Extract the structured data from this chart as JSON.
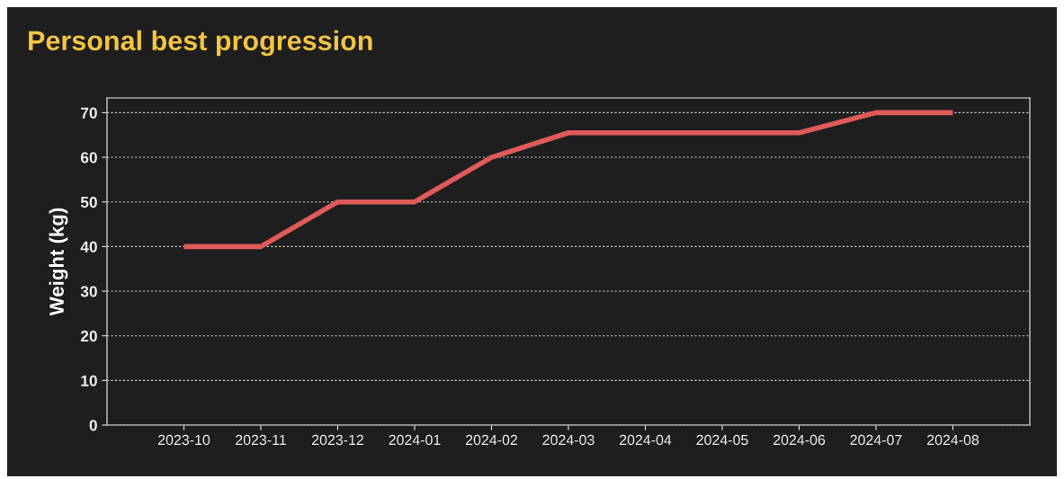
{
  "chart_data": {
    "type": "line",
    "title": "Personal best progression",
    "ylabel": "Weight (kg)",
    "categories": [
      "2023-10",
      "2023-11",
      "2023-12",
      "2024-01",
      "2024-02",
      "2024-03",
      "2024-04",
      "2024-05",
      "2024-06",
      "2024-07",
      "2024-08"
    ],
    "series": [
      {
        "color": "#e05a5a",
        "values": [
          40,
          40,
          50,
          50,
          60,
          65.5,
          65.5,
          65.5,
          65.5,
          70,
          70
        ]
      }
    ],
    "ylim": [
      0,
      73.3
    ],
    "yticks": [
      0,
      10,
      20,
      30,
      40,
      50,
      60,
      70
    ],
    "grid": "y",
    "marker": "none",
    "line_style": "solid"
  }
}
